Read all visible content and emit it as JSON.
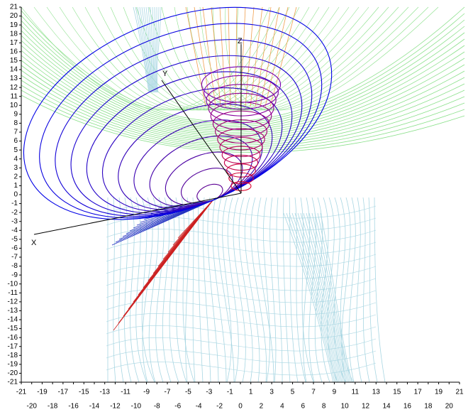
{
  "chart_data": {
    "type": "surface3d",
    "x_label": "X",
    "y_label": "Y",
    "z_label": "Z",
    "xlim": [
      -21,
      21
    ],
    "ylim": [
      -21,
      21
    ],
    "xticks": [
      -21,
      -20,
      -19,
      -18,
      -17,
      -16,
      -15,
      -14,
      -13,
      -12,
      -11,
      -10,
      -9,
      -8,
      -7,
      -6,
      -5,
      -4,
      -3,
      -2,
      -1,
      0,
      1,
      2,
      3,
      4,
      5,
      6,
      7,
      8,
      9,
      10,
      11,
      12,
      13,
      14,
      15,
      16,
      17,
      18,
      19,
      20,
      21
    ],
    "yticks": [
      -21,
      -20,
      -19,
      -18,
      -17,
      -16,
      -15,
      -14,
      -13,
      -12,
      -11,
      -10,
      -9,
      -8,
      -7,
      -6,
      -5,
      -4,
      -3,
      -2,
      -1,
      0,
      1,
      2,
      3,
      4,
      5,
      6,
      7,
      8,
      9,
      10,
      11,
      12,
      13,
      14,
      15,
      16,
      17,
      18,
      19,
      20,
      21
    ]
  }
}
